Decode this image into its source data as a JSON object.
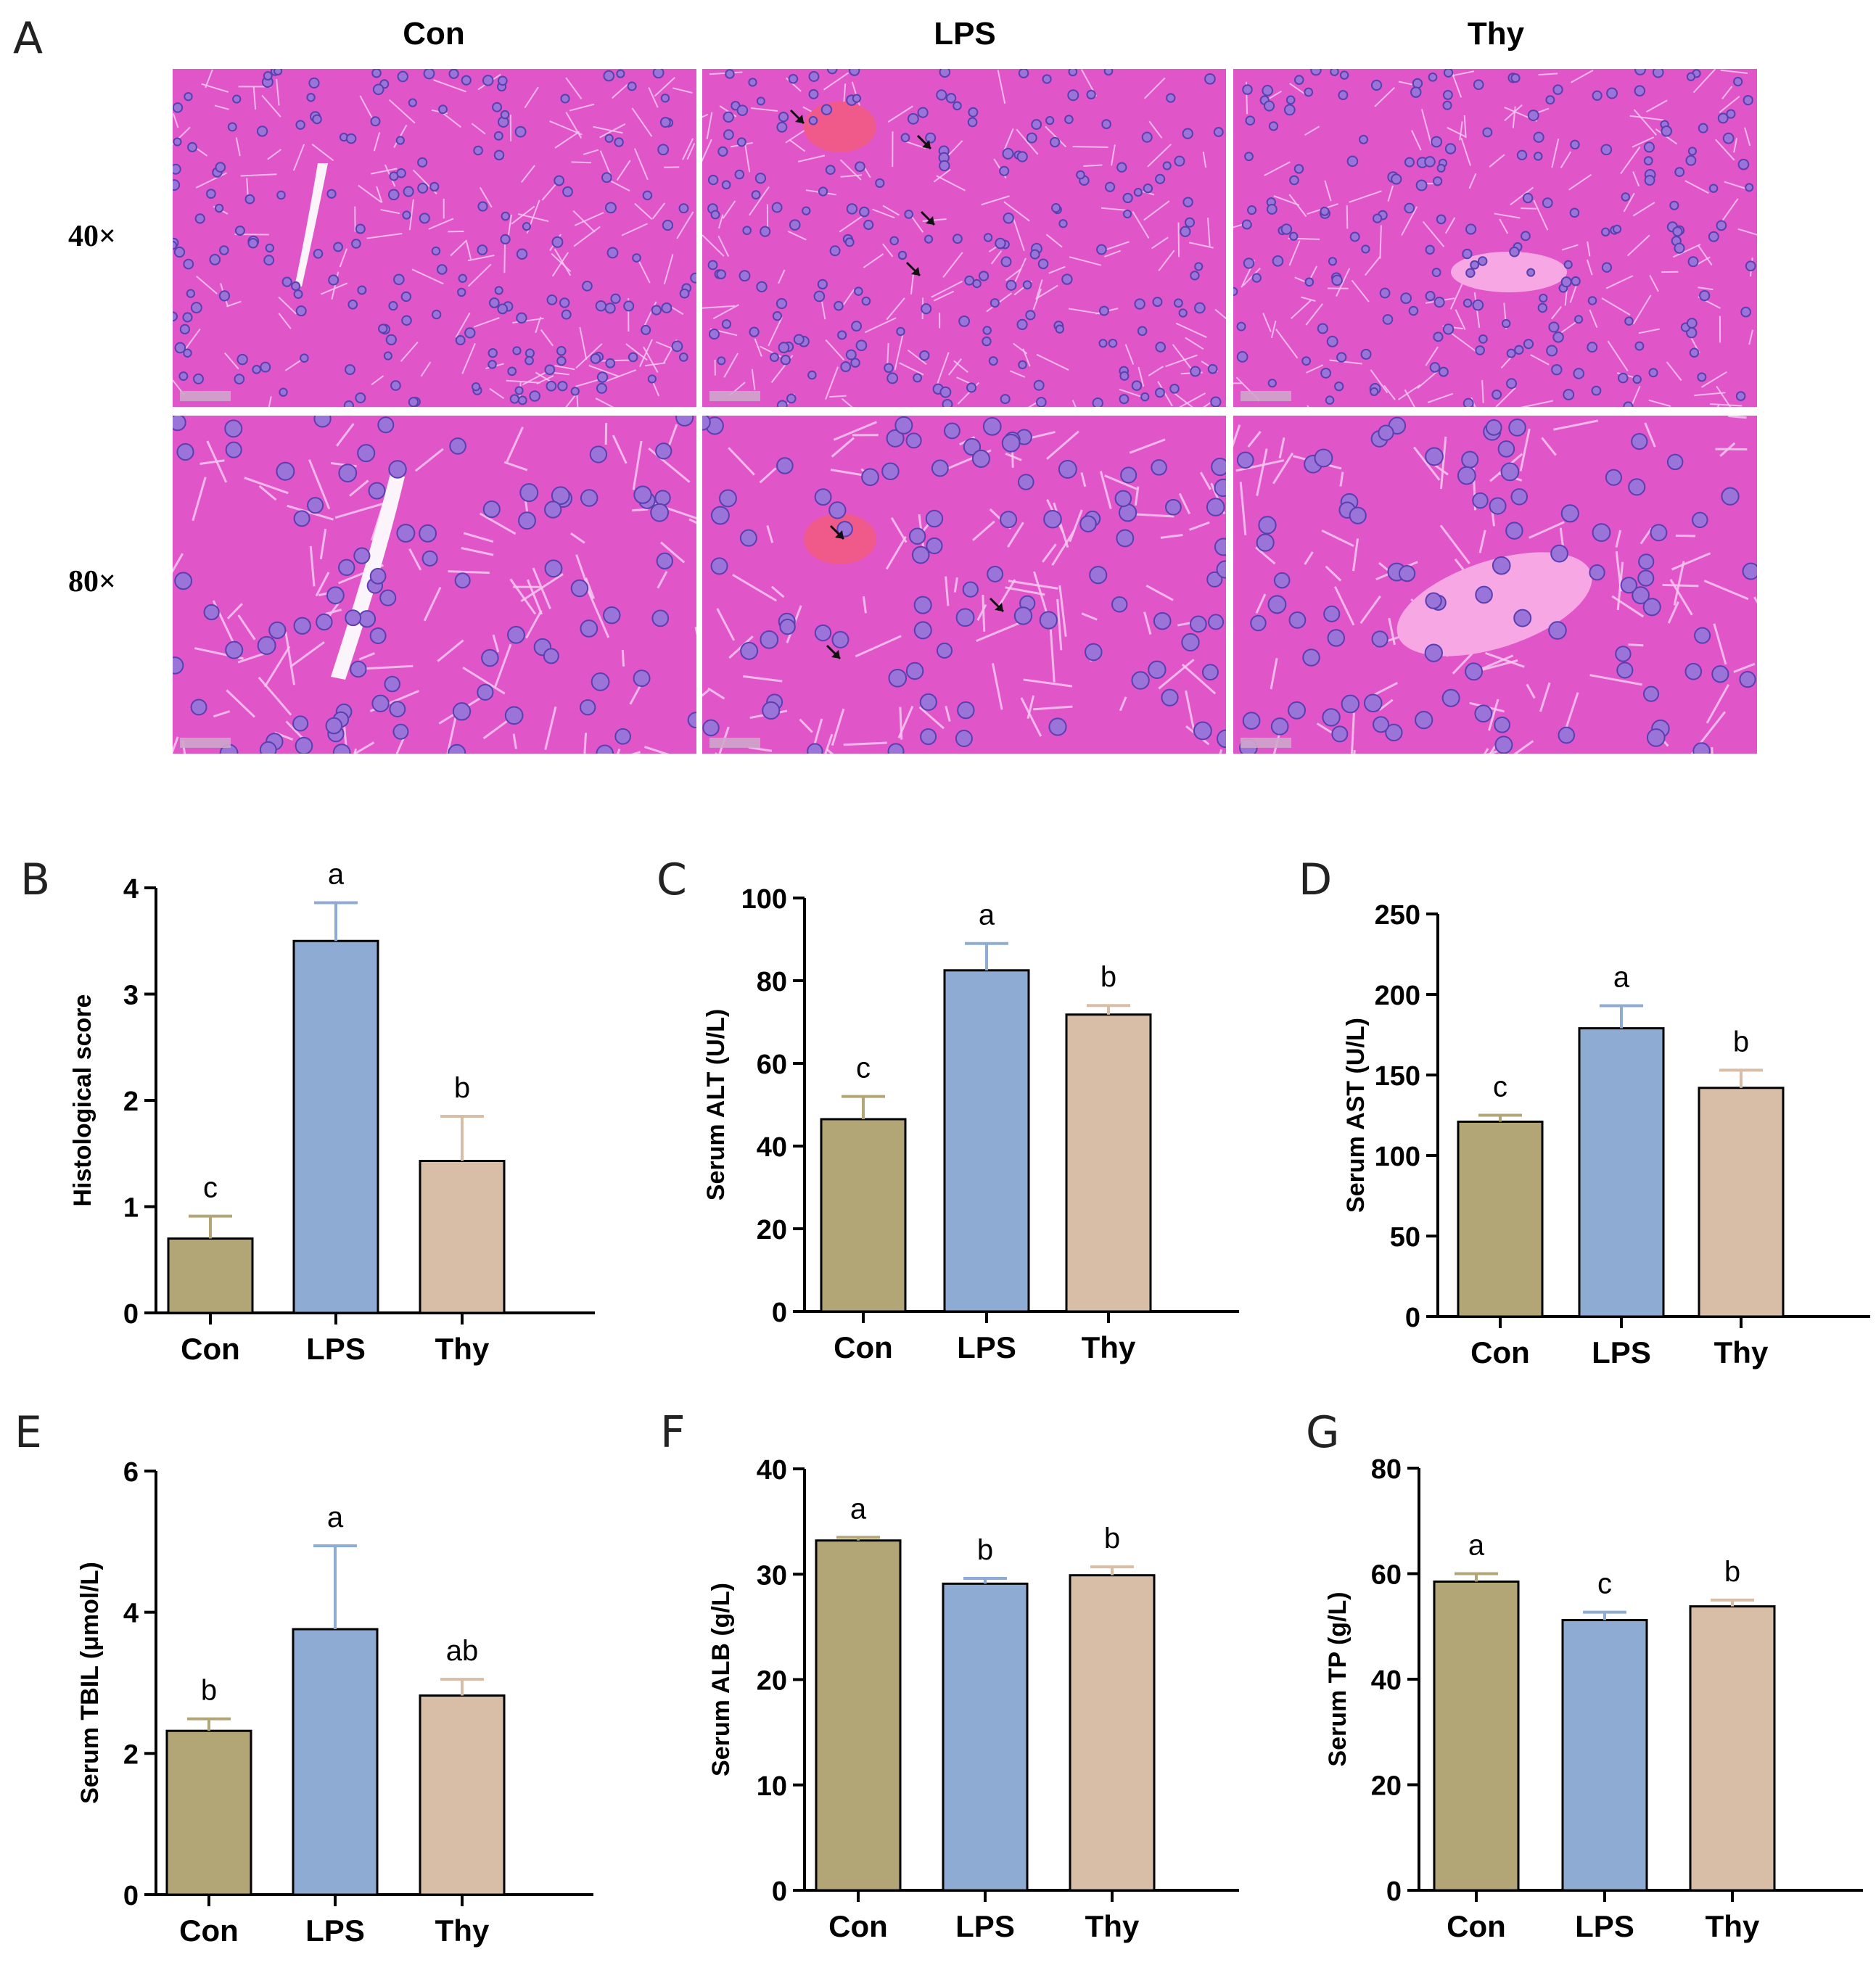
{
  "figure": {
    "panel_a": {
      "letter": "A",
      "columns": [
        "Con",
        "LPS",
        "Thy"
      ],
      "rows": [
        "40×",
        "80×"
      ]
    },
    "colors": {
      "Con": "#b3a676",
      "LPS": "#8eabd3",
      "Thy": "#d8bea6",
      "tissue": "#e056c8",
      "nucleus": "#5a3fb0"
    }
  },
  "chart_data": [
    {
      "panel": "B",
      "type": "bar",
      "categories": [
        "Con",
        "LPS",
        "Thy"
      ],
      "values": [
        0.7,
        3.5,
        1.43
      ],
      "errors": [
        0.21,
        0.36,
        0.42
      ],
      "letters": [
        "c",
        "a",
        "b"
      ],
      "xlabel": "",
      "ylabel": "Histological score",
      "ylim": [
        0,
        4
      ],
      "yticks": [
        "0",
        "1",
        "2",
        "3",
        "4"
      ]
    },
    {
      "panel": "C",
      "type": "bar",
      "categories": [
        "Con",
        "LPS",
        "Thy"
      ],
      "values": [
        46.5,
        82.5,
        71.8
      ],
      "errors": [
        5.5,
        6.5,
        2.2
      ],
      "letters": [
        "c",
        "a",
        "b"
      ],
      "xlabel": "",
      "ylabel": "Serum ALT (U/L)",
      "ylim": [
        0,
        100
      ],
      "yticks": [
        "0",
        "20",
        "40",
        "60",
        "80",
        "100"
      ]
    },
    {
      "panel": "D",
      "type": "bar",
      "categories": [
        "Con",
        "LPS",
        "Thy"
      ],
      "values": [
        121,
        179,
        142
      ],
      "errors": [
        4,
        14,
        11
      ],
      "letters": [
        "c",
        "a",
        "b"
      ],
      "xlabel": "",
      "ylabel": "Serum AST (U/L)",
      "ylim": [
        0,
        250
      ],
      "yticks": [
        "0",
        "50",
        "100",
        "150",
        "200",
        "250"
      ]
    },
    {
      "panel": "E",
      "type": "bar",
      "categories": [
        "Con",
        "LPS",
        "Thy"
      ],
      "values": [
        2.32,
        3.76,
        2.82
      ],
      "errors": [
        0.17,
        1.18,
        0.23
      ],
      "letters": [
        "b",
        "a",
        "ab"
      ],
      "xlabel": "",
      "ylabel": "Serum TBIL (μmol/L)",
      "ylim": [
        0,
        6
      ],
      "yticks": [
        "0",
        "2",
        "4",
        "6"
      ]
    },
    {
      "panel": "F",
      "type": "bar",
      "categories": [
        "Con",
        "LPS",
        "Thy"
      ],
      "values": [
        33.2,
        29.1,
        29.9
      ],
      "errors": [
        0.3,
        0.5,
        0.8
      ],
      "letters": [
        "a",
        "b",
        "b"
      ],
      "xlabel": "",
      "ylabel": "Serum ALB (g/L)",
      "ylim": [
        0,
        40
      ],
      "yticks": [
        "0",
        "10",
        "20",
        "30",
        "40"
      ]
    },
    {
      "panel": "G",
      "type": "bar",
      "categories": [
        "Con",
        "LPS",
        "Thy"
      ],
      "values": [
        58.5,
        51.2,
        53.8
      ],
      "errors": [
        1.5,
        1.5,
        1.2
      ],
      "letters": [
        "a",
        "c",
        "b"
      ],
      "xlabel": "",
      "ylabel": "Serum TP (g/L)",
      "ylim": [
        0,
        80
      ],
      "yticks": [
        "0",
        "20",
        "40",
        "60",
        "80"
      ]
    }
  ]
}
